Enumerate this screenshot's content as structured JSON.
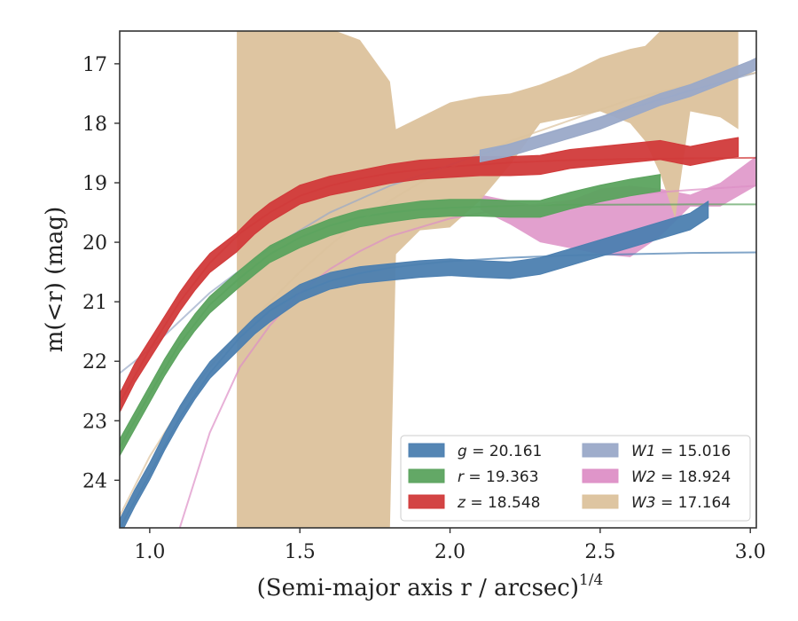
{
  "chart_data": {
    "type": "line",
    "xlabel": "(Semi-major axis r / arcsec)",
    "xlabel_exponent": "1/4",
    "ylabel": "m(<r) (mag)",
    "xlim": [
      0.9,
      3.02
    ],
    "ylim": [
      24.8,
      16.45
    ],
    "y_inverted": true,
    "x_ticks": [
      "1.0",
      "1.5",
      "2.0",
      "2.5",
      "3.0"
    ],
    "y_ticks": [
      "17",
      "18",
      "19",
      "20",
      "21",
      "22",
      "23",
      "24"
    ],
    "grid": false,
    "legend_position": "lower-right",
    "legend_columns": 2,
    "series": [
      {
        "name": "g = 20.161",
        "band": "g",
        "value": "20.161",
        "color": "#4c7fb0",
        "data_x": [
          0.9,
          0.95,
          1.0,
          1.05,
          1.1,
          1.15,
          1.2,
          1.29,
          1.35,
          1.4,
          1.5,
          1.6,
          1.7,
          1.8,
          1.9,
          2.0,
          2.1,
          2.2,
          2.3,
          2.4,
          2.5,
          2.6,
          2.7,
          2.8,
          2.86
        ],
        "data_y": [
          24.8,
          24.3,
          23.85,
          23.35,
          22.9,
          22.5,
          22.15,
          21.7,
          21.4,
          21.2,
          20.85,
          20.65,
          20.55,
          20.5,
          20.45,
          20.42,
          20.45,
          20.47,
          20.4,
          20.25,
          20.1,
          19.95,
          19.8,
          19.65,
          19.45
        ],
        "band_width": 0.14,
        "model_x": [
          0.9,
          1.0,
          1.1,
          1.2,
          1.3,
          1.4,
          1.5,
          1.6,
          1.7,
          1.8,
          1.9,
          2.0,
          2.2,
          2.4,
          2.6,
          2.8,
          3.02
        ],
        "model_y": [
          24.8,
          23.9,
          22.95,
          22.2,
          21.6,
          21.15,
          20.85,
          20.65,
          20.52,
          20.43,
          20.37,
          20.32,
          20.26,
          20.22,
          20.2,
          20.18,
          20.17
        ]
      },
      {
        "name": "r = 19.363",
        "band": "r",
        "value": "19.363",
        "color": "#5ba35e",
        "data_x": [
          0.9,
          0.95,
          1.0,
          1.05,
          1.1,
          1.15,
          1.2,
          1.29,
          1.35,
          1.4,
          1.5,
          1.6,
          1.7,
          1.8,
          1.9,
          2.0,
          2.1,
          2.2,
          2.3,
          2.4,
          2.5,
          2.6,
          2.7
        ],
        "data_y": [
          23.45,
          23.0,
          22.55,
          22.1,
          21.7,
          21.35,
          21.05,
          20.65,
          20.4,
          20.2,
          19.95,
          19.75,
          19.6,
          19.52,
          19.45,
          19.42,
          19.42,
          19.44,
          19.44,
          19.3,
          19.18,
          19.08,
          19.0
        ],
        "band_width": 0.14,
        "model_x": [
          0.9,
          1.0,
          1.1,
          1.2,
          1.3,
          1.4,
          1.5,
          1.6,
          1.7,
          1.8,
          1.9,
          2.0,
          2.2,
          2.4,
          2.6,
          2.8,
          3.02
        ],
        "model_y": [
          23.45,
          22.55,
          21.7,
          21.05,
          20.6,
          20.2,
          19.92,
          19.72,
          19.58,
          19.5,
          19.45,
          19.42,
          19.39,
          19.37,
          19.366,
          19.364,
          19.363
        ]
      },
      {
        "name": "z = 18.548",
        "band": "z",
        "value": "18.548",
        "color": "#d13a3a",
        "data_x": [
          0.9,
          0.95,
          1.0,
          1.05,
          1.1,
          1.15,
          1.2,
          1.29,
          1.35,
          1.4,
          1.5,
          1.6,
          1.7,
          1.8,
          1.9,
          2.0,
          2.1,
          2.2,
          2.3,
          2.4,
          2.5,
          2.6,
          2.7,
          2.8,
          2.9,
          2.96
        ],
        "data_y": [
          22.7,
          22.2,
          21.8,
          21.4,
          21.0,
          20.65,
          20.35,
          20.0,
          19.7,
          19.5,
          19.2,
          19.05,
          18.95,
          18.85,
          18.78,
          18.75,
          18.72,
          18.72,
          18.7,
          18.6,
          18.55,
          18.5,
          18.45,
          18.55,
          18.45,
          18.4
        ],
        "band_width": 0.16,
        "model_x": [
          0.9,
          1.0,
          1.1,
          1.2,
          1.3,
          1.4,
          1.5,
          1.6,
          1.7,
          1.8,
          1.9,
          2.0,
          2.2,
          2.4,
          2.6,
          2.8,
          3.02
        ],
        "model_y": [
          22.7,
          21.8,
          21.0,
          20.35,
          19.85,
          19.5,
          19.22,
          19.05,
          18.93,
          18.84,
          18.78,
          18.73,
          18.66,
          18.62,
          18.6,
          18.59,
          18.58
        ]
      },
      {
        "name": "W1 = 15.016",
        "band": "W1",
        "value": "15.016",
        "color": "#9aa9c8",
        "data_x": [
          2.1,
          2.2,
          2.3,
          2.4,
          2.5,
          2.6,
          2.7,
          2.8,
          2.9,
          3.0,
          3.02
        ],
        "data_y": [
          18.55,
          18.45,
          18.3,
          18.15,
          18.0,
          17.8,
          17.6,
          17.45,
          17.25,
          17.05,
          17.0
        ],
        "band_width": 0.1,
        "model_x": [
          0.9,
          1.0,
          1.2,
          1.4,
          1.6,
          1.8,
          2.0,
          2.2,
          2.4,
          2.6,
          2.8,
          3.02
        ],
        "model_y": [
          22.2,
          21.8,
          20.85,
          20.1,
          19.5,
          19.05,
          18.7,
          18.35,
          18.05,
          17.75,
          17.45,
          17.15
        ]
      },
      {
        "name": "W2 = 18.924",
        "band": "W2",
        "value": "18.924",
        "color": "#dd8fc6",
        "band_x": [
          2.1,
          2.2,
          2.3,
          2.4,
          2.5,
          2.6,
          2.7,
          2.8,
          2.9,
          3.02
        ],
        "band_upper": [
          19.2,
          19.3,
          19.4,
          19.3,
          19.1,
          19.05,
          19.1,
          19.2,
          19.0,
          18.55
        ],
        "band_lower": [
          19.45,
          19.7,
          20.0,
          20.1,
          20.2,
          20.25,
          19.9,
          19.4,
          19.4,
          19.05
        ],
        "model_x": [
          1.1,
          1.2,
          1.3,
          1.4,
          1.5,
          1.6,
          1.7,
          1.8,
          2.0,
          2.2,
          2.4,
          2.6,
          2.8,
          3.02
        ],
        "model_y": [
          24.8,
          23.2,
          22.1,
          21.4,
          20.85,
          20.45,
          20.15,
          19.9,
          19.6,
          19.42,
          19.3,
          19.2,
          19.12,
          19.05
        ]
      },
      {
        "name": "W3 = 17.164",
        "band": "W3",
        "value": "17.164",
        "color": "#dcc29c",
        "band_x": [
          1.29,
          1.4,
          1.5,
          1.6,
          1.62,
          1.7,
          1.8,
          1.82,
          1.9,
          2.0,
          2.1,
          2.2,
          2.3,
          2.4,
          2.5,
          2.6,
          2.65,
          2.7,
          2.75,
          2.8,
          2.9,
          2.96
        ],
        "band_upper": [
          16.45,
          16.45,
          16.45,
          16.45,
          16.45,
          16.6,
          17.3,
          18.1,
          17.9,
          17.65,
          17.55,
          17.5,
          17.35,
          17.15,
          16.9,
          16.75,
          16.7,
          16.45,
          16.45,
          16.45,
          16.45,
          16.45
        ],
        "band_lower": [
          24.8,
          24.8,
          24.8,
          24.8,
          24.8,
          24.8,
          24.8,
          20.2,
          19.8,
          19.75,
          19.3,
          18.7,
          18.0,
          17.9,
          17.8,
          18.0,
          18.3,
          18.85,
          19.6,
          17.8,
          17.9,
          18.1
        ],
        "model_x": [
          0.9,
          1.0,
          1.1,
          1.2,
          1.3,
          1.4,
          1.5,
          1.6,
          1.7,
          1.8,
          1.9,
          2.0,
          2.2,
          2.4,
          2.6,
          2.8,
          3.02
        ],
        "model_y": [
          24.6,
          23.6,
          22.8,
          22.1,
          21.5,
          21.0,
          20.5,
          20.05,
          19.65,
          19.3,
          19.0,
          18.75,
          18.3,
          17.95,
          17.6,
          17.35,
          17.15
        ]
      }
    ]
  }
}
